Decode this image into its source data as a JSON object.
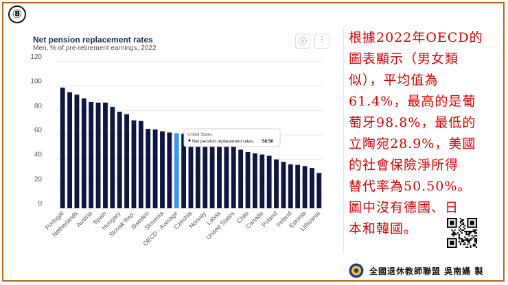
{
  "badge": "⑧",
  "chart_data": {
    "type": "bar",
    "title": "Net pension replacement rates",
    "subtitle": "Men, % of pre-retirement earnings, 2022",
    "xlabel": "",
    "ylabel": "",
    "ylim": [
      0,
      120
    ],
    "yticks": [
      0,
      20,
      40,
      60,
      80,
      100,
      120
    ],
    "grid": true,
    "categories": [
      "Portugal",
      "",
      "Netherlands",
      "",
      "Austria",
      "",
      "Spain",
      "",
      "Hungary",
      "",
      "Slovak Rep.",
      "",
      "Sweden",
      "",
      "Slovenia",
      "",
      "OECD - Average",
      "",
      "Czechia",
      "",
      "Norway",
      "",
      "Latvia",
      "",
      "United States",
      "",
      "Chile",
      "",
      "Canada",
      "",
      "Poland",
      "",
      "Ireland",
      "",
      "Estonia",
      "",
      "Lithuania"
    ],
    "values": [
      98.8,
      95,
      93,
      90,
      87,
      86.5,
      86.5,
      83,
      79,
      77,
      72,
      71.5,
      65,
      64.5,
      63,
      62,
      61.4,
      61,
      60.8,
      60.6,
      60.5,
      60.5,
      54,
      53,
      50.5,
      48,
      46,
      45,
      44,
      43,
      40,
      38,
      36,
      35.5,
      34.5,
      33,
      28.9
    ],
    "highlight_index": 16,
    "colors": {
      "bar": "#0f1740",
      "highlight": "#3f97e8",
      "grid": "#e3e6eb"
    },
    "tooltip": {
      "country": "United States",
      "label": "Net pension replacement rates:",
      "value": "50.50"
    }
  },
  "buttons": {
    "info_icon": "ⓘ",
    "more_icon": "⋮"
  },
  "note_lines": [
    "根據2022年OECD的",
    "圖表顯示（男女類",
    "似），平均值為",
    "61.4%，最高的是葡",
    "萄牙98.8%，最低的",
    "立陶宛28.9%，美國",
    "的社會保險淨所得",
    "替代率為50.50%。",
    "圖中沒有德國、日",
    "本和韓國。"
  ],
  "footer": "全國退休教師聯盟 吳南嬿 製",
  "colors": {
    "note_text": "#d40000",
    "frame": "#b8651f"
  }
}
